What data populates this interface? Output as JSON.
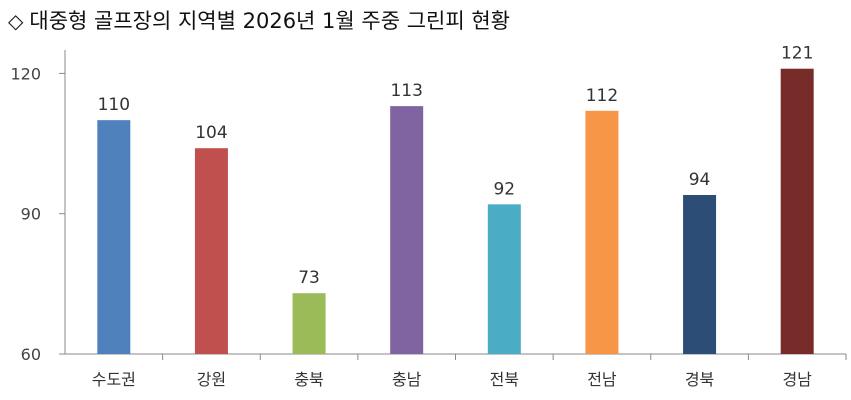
{
  "title_marker": "◇",
  "title": "대중형 골프장의 지역별 2026년 1월 주중 그린피 현황",
  "chart_data": {
    "type": "bar",
    "title": "대중형 골프장의 지역별 2026년 1월 주중 그린피 현황",
    "categories": [
      "수도권",
      "강원",
      "충북",
      "충남",
      "전북",
      "전남",
      "경북",
      "경남"
    ],
    "values": [
      110,
      104,
      73,
      113,
      92,
      112,
      94,
      121
    ],
    "colors": [
      "#4F81BD",
      "#C0504D",
      "#9BBB59",
      "#8064A2",
      "#4BACC6",
      "#F79646",
      "#2C4D75",
      "#772C2A"
    ],
    "ylim": [
      60,
      125
    ],
    "yticks": [
      60,
      90,
      120
    ],
    "grid": false,
    "xlabel": "",
    "ylabel": ""
  }
}
